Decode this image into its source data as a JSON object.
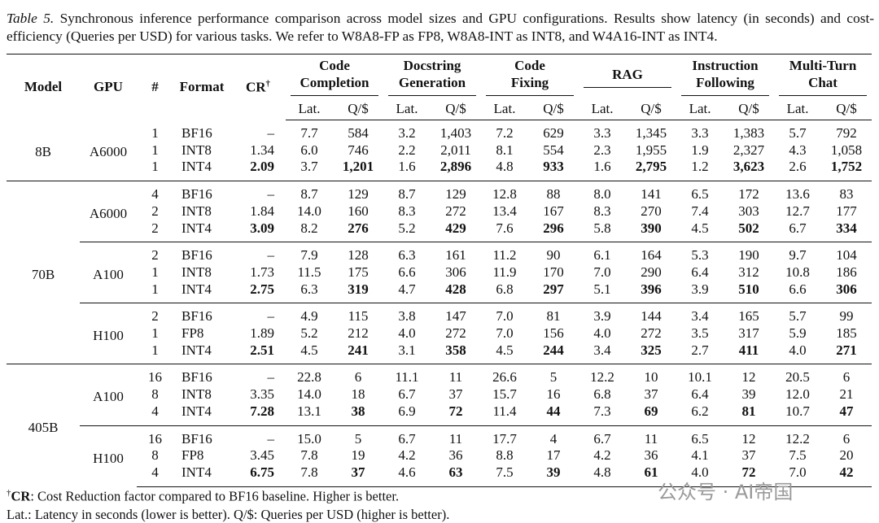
{
  "caption": {
    "label": "Table 5.",
    "text": "Synchronous inference performance comparison across model sizes and GPU configurations. Results show latency (in seconds) and cost-efficiency (Queries per USD) for various tasks. We refer to W8A8-FP as FP8, W8A8-INT as INT8, and W4A16-INT as INT4."
  },
  "header": {
    "columns": [
      "Model",
      "GPU",
      "#",
      "Format"
    ],
    "cr": "CR",
    "cr_mark": "†",
    "tasks": [
      [
        "Code",
        "Completion"
      ],
      [
        "Docstring",
        "Generation"
      ],
      [
        "Code",
        "Fixing"
      ],
      [
        "RAG"
      ],
      [
        "Instruction",
        "Following"
      ],
      [
        "Multi-Turn",
        "Chat"
      ]
    ],
    "sub": [
      "Lat.",
      "Q/$"
    ]
  },
  "models": [
    {
      "name": "8B",
      "gpus": [
        {
          "name": "A6000",
          "rows": [
            [
              "1",
              "BF16",
              "–",
              "7.7",
              "584",
              "3.2",
              "1,403",
              "7.2",
              "629",
              "3.3",
              "1,345",
              "3.3",
              "1,383",
              "5.7",
              "792"
            ],
            [
              "1",
              "INT8",
              "1.34",
              "6.0",
              "746",
              "2.2",
              "2,011",
              "8.1",
              "554",
              "2.3",
              "1,955",
              "1.9",
              "2,327",
              "4.3",
              "1,058"
            ],
            [
              "1",
              "INT4",
              "2.09",
              "3.7",
              "1,201",
              "1.6",
              "2,896",
              "4.8",
              "933",
              "1.6",
              "2,795",
              "1.2",
              "3,623",
              "2.6",
              "1,752"
            ]
          ]
        }
      ]
    },
    {
      "name": "70B",
      "gpus": [
        {
          "name": "A6000",
          "rows": [
            [
              "4",
              "BF16",
              "–",
              "8.7",
              "129",
              "8.7",
              "129",
              "12.8",
              "88",
              "8.0",
              "141",
              "6.5",
              "172",
              "13.6",
              "83"
            ],
            [
              "2",
              "INT8",
              "1.84",
              "14.0",
              "160",
              "8.3",
              "272",
              "13.4",
              "167",
              "8.3",
              "270",
              "7.4",
              "303",
              "12.7",
              "177"
            ],
            [
              "2",
              "INT4",
              "3.09",
              "8.2",
              "276",
              "5.2",
              "429",
              "7.6",
              "296",
              "5.8",
              "390",
              "4.5",
              "502",
              "6.7",
              "334"
            ]
          ]
        },
        {
          "name": "A100",
          "rows": [
            [
              "2",
              "BF16",
              "–",
              "7.9",
              "128",
              "6.3",
              "161",
              "11.2",
              "90",
              "6.1",
              "164",
              "5.3",
              "190",
              "9.7",
              "104"
            ],
            [
              "1",
              "INT8",
              "1.73",
              "11.5",
              "175",
              "6.6",
              "306",
              "11.9",
              "170",
              "7.0",
              "290",
              "6.4",
              "312",
              "10.8",
              "186"
            ],
            [
              "1",
              "INT4",
              "2.75",
              "6.3",
              "319",
              "4.7",
              "428",
              "6.8",
              "297",
              "5.1",
              "396",
              "3.9",
              "510",
              "6.6",
              "306"
            ]
          ]
        },
        {
          "name": "H100",
          "rows": [
            [
              "2",
              "BF16",
              "–",
              "4.9",
              "115",
              "3.8",
              "147",
              "7.0",
              "81",
              "3.9",
              "144",
              "3.4",
              "165",
              "5.7",
              "99"
            ],
            [
              "1",
              "FP8",
              "1.89",
              "5.2",
              "212",
              "4.0",
              "272",
              "7.0",
              "156",
              "4.0",
              "272",
              "3.5",
              "317",
              "5.9",
              "185"
            ],
            [
              "1",
              "INT4",
              "2.51",
              "4.5",
              "241",
              "3.1",
              "358",
              "4.5",
              "244",
              "3.4",
              "325",
              "2.7",
              "411",
              "4.0",
              "271"
            ]
          ]
        }
      ]
    },
    {
      "name": "405B",
      "gpus": [
        {
          "name": "A100",
          "rows": [
            [
              "16",
              "BF16",
              "–",
              "22.8",
              "6",
              "11.1",
              "11",
              "26.6",
              "5",
              "12.2",
              "10",
              "10.1",
              "12",
              "20.5",
              "6"
            ],
            [
              "8",
              "INT8",
              "3.35",
              "14.0",
              "18",
              "6.7",
              "37",
              "15.7",
              "16",
              "6.8",
              "37",
              "6.4",
              "39",
              "12.0",
              "21"
            ],
            [
              "4",
              "INT4",
              "7.28",
              "13.1",
              "38",
              "6.9",
              "72",
              "11.4",
              "44",
              "7.3",
              "69",
              "6.2",
              "81",
              "10.7",
              "47"
            ]
          ]
        },
        {
          "name": "H100",
          "rows": [
            [
              "16",
              "BF16",
              "–",
              "15.0",
              "5",
              "6.7",
              "11",
              "17.7",
              "4",
              "6.7",
              "11",
              "6.5",
              "12",
              "12.2",
              "6"
            ],
            [
              "8",
              "FP8",
              "3.45",
              "7.8",
              "19",
              "4.2",
              "36",
              "8.8",
              "17",
              "4.2",
              "36",
              "4.1",
              "37",
              "7.5",
              "20"
            ],
            [
              "4",
              "INT4",
              "6.75",
              "7.8",
              "37",
              "4.6",
              "63",
              "7.5",
              "39",
              "4.8",
              "61",
              "4.0",
              "72",
              "7.0",
              "42"
            ]
          ]
        }
      ]
    }
  ],
  "footnotes": {
    "mark": "†",
    "term": "CR",
    "text": ": Cost Reduction factor compared to BF16 baseline. Higher is better.",
    "second": "Lat.: Latency in seconds (lower is better). Q/$: Queries per USD (higher is better)."
  },
  "watermark": "公众号 · AI帝国"
}
